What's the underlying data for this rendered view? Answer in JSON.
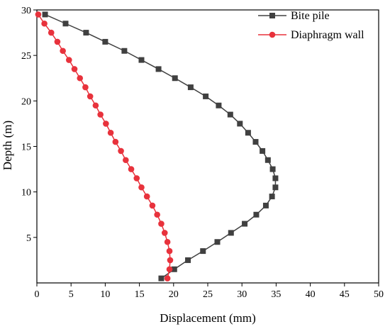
{
  "chart_data": {
    "type": "line",
    "title": "",
    "xlabel": "Displacement (mm)",
    "ylabel": "Depth (m)",
    "xlim": [
      0,
      50
    ],
    "ylim": [
      0,
      30
    ],
    "xticks": [
      "0",
      "5",
      "10",
      "15",
      "20",
      "25",
      "30",
      "35",
      "40",
      "45",
      "50"
    ],
    "yticks": [
      "5",
      "10",
      "15",
      "20",
      "25",
      "30"
    ],
    "grid": false,
    "legend_position": "top-right",
    "series": [
      {
        "name": "Bite pile",
        "color": "#404040",
        "marker": "square",
        "points": [
          [
            1.2,
            29.5
          ],
          [
            4.2,
            28.5
          ],
          [
            7.2,
            27.5
          ],
          [
            10.0,
            26.5
          ],
          [
            12.8,
            25.5
          ],
          [
            15.3,
            24.5
          ],
          [
            17.8,
            23.5
          ],
          [
            20.2,
            22.5
          ],
          [
            22.5,
            21.5
          ],
          [
            24.7,
            20.5
          ],
          [
            26.6,
            19.5
          ],
          [
            28.3,
            18.5
          ],
          [
            29.7,
            17.5
          ],
          [
            30.9,
            16.5
          ],
          [
            32.0,
            15.5
          ],
          [
            33.0,
            14.5
          ],
          [
            33.8,
            13.5
          ],
          [
            34.5,
            12.5
          ],
          [
            34.9,
            11.5
          ],
          [
            34.9,
            10.5
          ],
          [
            34.4,
            9.5
          ],
          [
            33.5,
            8.5
          ],
          [
            32.1,
            7.5
          ],
          [
            30.4,
            6.5
          ],
          [
            28.4,
            5.5
          ],
          [
            26.4,
            4.5
          ],
          [
            24.3,
            3.5
          ],
          [
            22.1,
            2.5
          ],
          [
            20.1,
            1.5
          ],
          [
            18.2,
            0.5
          ]
        ]
      },
      {
        "name": "Diaphragm wall",
        "color": "#e8323c",
        "marker": "circle",
        "points": [
          [
            0.2,
            29.5
          ],
          [
            1.1,
            28.5
          ],
          [
            2.1,
            27.5
          ],
          [
            3.0,
            26.5
          ],
          [
            3.8,
            25.5
          ],
          [
            4.7,
            24.5
          ],
          [
            5.5,
            23.5
          ],
          [
            6.3,
            22.5
          ],
          [
            7.1,
            21.5
          ],
          [
            7.8,
            20.5
          ],
          [
            8.6,
            19.5
          ],
          [
            9.3,
            18.5
          ],
          [
            10.1,
            17.5
          ],
          [
            10.8,
            16.5
          ],
          [
            11.5,
            15.5
          ],
          [
            12.3,
            14.5
          ],
          [
            13.0,
            13.5
          ],
          [
            13.8,
            12.5
          ],
          [
            14.6,
            11.5
          ],
          [
            15.3,
            10.5
          ],
          [
            16.1,
            9.5
          ],
          [
            16.9,
            8.5
          ],
          [
            17.6,
            7.5
          ],
          [
            18.2,
            6.5
          ],
          [
            18.7,
            5.5
          ],
          [
            19.1,
            4.5
          ],
          [
            19.4,
            3.5
          ],
          [
            19.5,
            2.5
          ],
          [
            19.4,
            1.5
          ],
          [
            19.1,
            0.5
          ]
        ]
      }
    ]
  }
}
